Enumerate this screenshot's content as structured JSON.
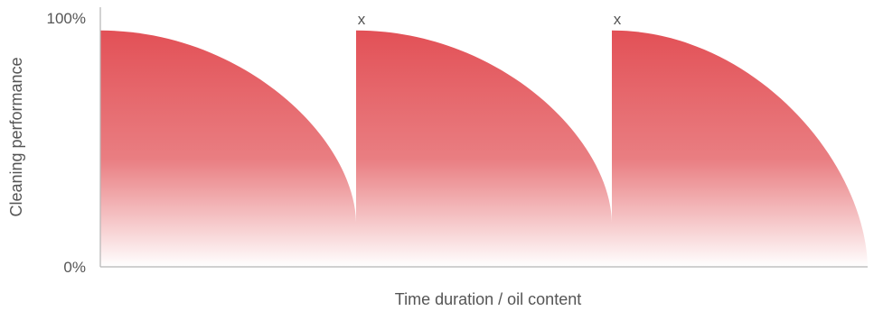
{
  "chart_data": {
    "type": "area",
    "xlabel": "Time duration / oil content",
    "ylabel": "Cleaning performance",
    "ylim": [
      0,
      100
    ],
    "y_ticks": [
      "0%",
      "100%"
    ],
    "grid": false,
    "fill_color_top": "#e24f55",
    "fill_color_bottom": "#ffffff",
    "segments": [
      {
        "x_start": 0,
        "x_end": 28,
        "y_start": 95,
        "y_end": 18,
        "label": ""
      },
      {
        "x_start": 28,
        "x_end": 56,
        "y_start": 95,
        "y_end": 18,
        "label": "x"
      },
      {
        "x_start": 56,
        "x_end": 84,
        "y_start": 95,
        "y_end": 0,
        "label": "x"
      }
    ],
    "xlim": [
      0,
      84
    ]
  }
}
